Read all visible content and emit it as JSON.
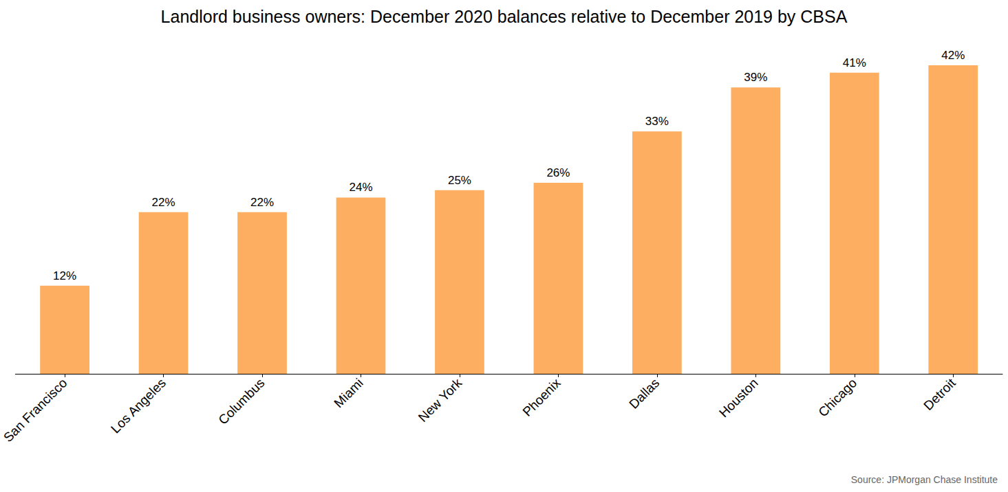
{
  "chart_data": {
    "type": "bar",
    "title": "Landlord business owners: December 2020 balances relative to December 2019 by CBSA",
    "source": "Source: JPMorgan Chase Institute",
    "categories": [
      "San Francisco",
      "Los Angeles",
      "Columbus",
      "Miami",
      "New York",
      "Phoenix",
      "Dallas",
      "Houston",
      "Chicago",
      "Detroit"
    ],
    "values": [
      12,
      22,
      22,
      24,
      25,
      26,
      33,
      39,
      41,
      42
    ],
    "value_labels": [
      "12%",
      "22%",
      "22%",
      "24%",
      "25%",
      "26%",
      "33%",
      "39%",
      "41%",
      "42%"
    ],
    "color": "#fdae61",
    "ylim": [
      0,
      45
    ],
    "grid": false,
    "data_labels": true,
    "tick_labels": "x"
  }
}
